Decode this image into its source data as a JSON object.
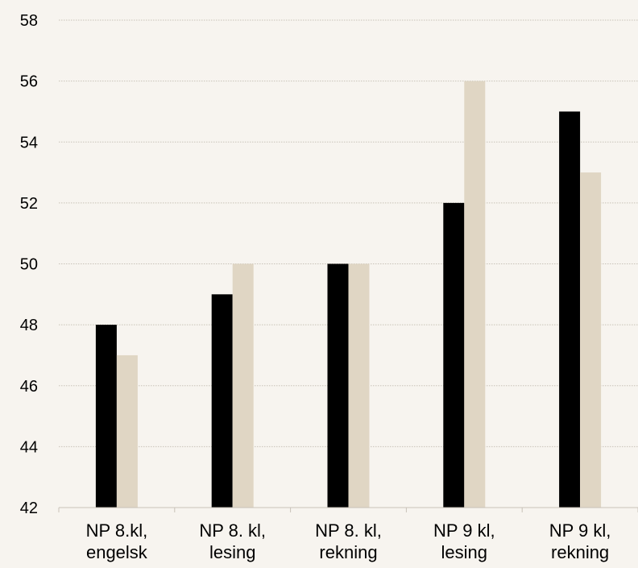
{
  "chart_data": {
    "type": "bar",
    "categories": [
      [
        "NP 8.kl,",
        "engelsk"
      ],
      [
        "NP 8. kl,",
        "lesing"
      ],
      [
        "NP 8. kl,",
        "rekning"
      ],
      [
        "NP 9 kl,",
        "lesing"
      ],
      [
        "NP 9 kl,",
        "rekning"
      ]
    ],
    "series": [
      {
        "values": [
          48,
          49,
          50,
          52,
          55
        ],
        "color": "#000000"
      },
      {
        "values": [
          47,
          50,
          50,
          56,
          53
        ],
        "color": "#e0d6c4"
      }
    ],
    "ylim": [
      42,
      58
    ],
    "yticks": [
      42,
      44,
      46,
      48,
      50,
      52,
      54,
      56,
      58
    ],
    "grid": true,
    "gridline_color": "#c8c2b8",
    "background": "#f7f4ef"
  }
}
